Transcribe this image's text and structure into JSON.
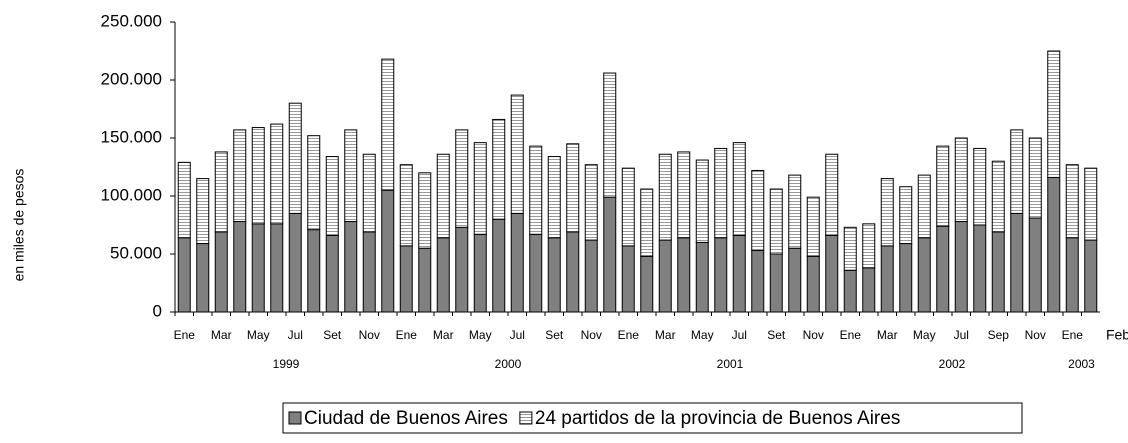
{
  "chart_data": {
    "type": "stacked-bar",
    "y_label": "en miles de pesos",
    "categories": [
      "Ene",
      null,
      "Mar",
      null,
      "May",
      null,
      "Jul",
      null,
      "Set",
      null,
      "Nov",
      null,
      "Ene",
      null,
      "Mar",
      null,
      "May",
      null,
      "Jul",
      null,
      "Set",
      null,
      "Nov",
      null,
      "Ene",
      null,
      "Mar",
      null,
      "May",
      null,
      "Jul",
      null,
      "Set",
      null,
      "Nov",
      null,
      "Ene",
      null,
      "Mar",
      null,
      "May",
      null,
      "Jul",
      null,
      "Sep",
      null,
      "Nov",
      null,
      "Ene",
      "Feb"
    ],
    "years": [
      "1999",
      "2000",
      "2001",
      "2002",
      "2003"
    ],
    "series": [
      {
        "name": "Ciudad de Buenos Aires",
        "color": "#808080",
        "values": [
          64000,
          59000,
          69000,
          78000,
          76000,
          76000,
          85000,
          71000,
          66000,
          78000,
          69000,
          105000,
          57000,
          55000,
          64000,
          73000,
          67000,
          80000,
          85000,
          67000,
          64000,
          69000,
          62000,
          99000,
          57000,
          48000,
          62000,
          64000,
          60000,
          64000,
          66000,
          53000,
          50000,
          55000,
          48000,
          66000,
          36000,
          38000,
          57000,
          59000,
          64000,
          74000,
          78000,
          75000,
          69000,
          85000,
          81000,
          116000,
          64000,
          62000
        ]
      },
      {
        "name": "24 partidos de la provincia de Buenos Aires",
        "color": "#ffffff",
        "pattern": "horizontal-lines",
        "values": [
          65000,
          56000,
          69000,
          79000,
          83000,
          86000,
          95000,
          81000,
          68000,
          79000,
          67000,
          113000,
          70000,
          65000,
          72000,
          84000,
          79000,
          86000,
          102000,
          76000,
          70000,
          76000,
          65000,
          107000,
          67000,
          58000,
          74000,
          74000,
          71000,
          77000,
          80000,
          69000,
          56000,
          63000,
          51000,
          70000,
          37000,
          38000,
          58000,
          49000,
          54000,
          69000,
          72000,
          66000,
          61000,
          72000,
          69000,
          109000,
          63000,
          62000
        ]
      }
    ],
    "ylim": [
      0,
      250000
    ],
    "yticks": [
      0,
      {
        "value": 50000,
        "label": "50.000"
      },
      {
        "value": 100000,
        "label": "100.000"
      },
      {
        "value": 150000,
        "label": "150.000"
      },
      {
        "value": 200000,
        "label": "200.000"
      },
      {
        "value": 250000,
        "label": "250.000"
      }
    ],
    "grid": false,
    "legend": "bottom"
  }
}
